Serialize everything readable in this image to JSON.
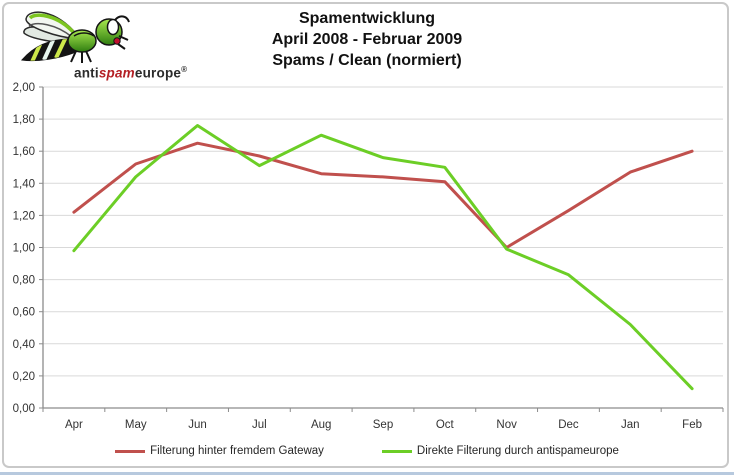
{
  "logo": {
    "brand_anti": "anti",
    "brand_spam": "spam",
    "brand_europe": "europe",
    "registered_mark": "®"
  },
  "title": {
    "line1": "Spamentwicklung",
    "line2": "April 2008 - Februar 2009",
    "line3": "Spams / Clean (normiert)"
  },
  "chart_data": {
    "type": "line",
    "title": "Spamentwicklung April 2008 - Februar 2009 Spams / Clean (normiert)",
    "categories": [
      "Apr",
      "May",
      "Jun",
      "Jul",
      "Aug",
      "Sep",
      "Oct",
      "Nov",
      "Dec",
      "Jan",
      "Feb"
    ],
    "series": [
      {
        "name": "Filterung hinter fremdem Gateway",
        "color": "#C0504D",
        "values": [
          1.22,
          1.52,
          1.65,
          1.57,
          1.46,
          1.44,
          1.41,
          1.0,
          1.23,
          1.47,
          1.6
        ]
      },
      {
        "name": "Direkte Filterung durch antispameurope",
        "color": "#6CCE26",
        "values": [
          0.98,
          1.44,
          1.76,
          1.51,
          1.7,
          1.56,
          1.5,
          0.99,
          0.83,
          0.52,
          0.12
        ]
      }
    ],
    "y_ticks": [
      "0,00",
      "0,20",
      "0,40",
      "0,60",
      "0,80",
      "1,00",
      "1,20",
      "1,40",
      "1,60",
      "1,80",
      "2,00"
    ],
    "ylim": [
      0,
      2
    ],
    "y_step": 0.2,
    "xlabel": "",
    "ylabel": "",
    "grid": true,
    "legend_position": "bottom"
  },
  "colors": {
    "grid": "#d9d9d9",
    "axis": "#8c8c8c",
    "tick_text": "#333333",
    "frame_border": "#c9c9c9",
    "bottom_line": "#b7c9de",
    "brand_spam_red": "#b42025",
    "series_red": "#C0504D",
    "series_green": "#6CCE26"
  }
}
